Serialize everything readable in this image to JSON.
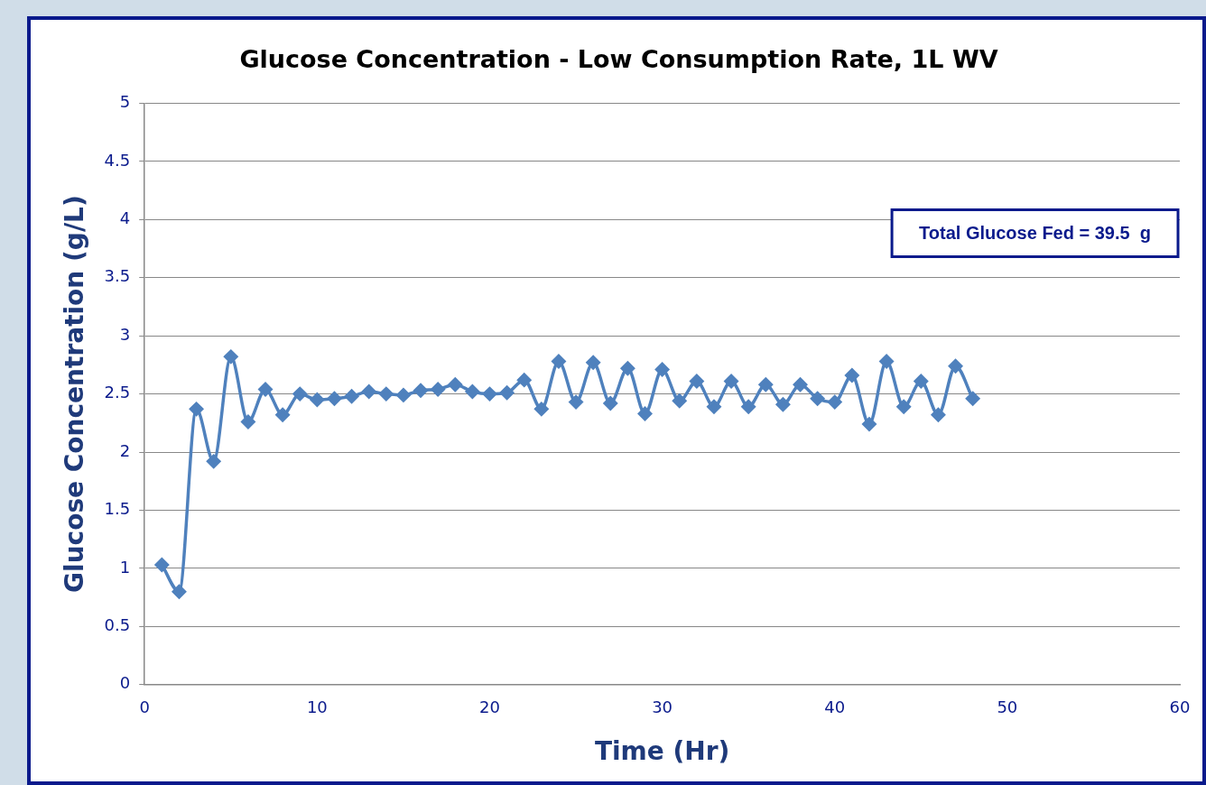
{
  "chart_data": {
    "type": "line",
    "title": "Glucose Concentration - Low Consumption Rate, 1L WV",
    "xlabel": "Time (Hr)",
    "ylabel": "Glucose Concentration (g/L)",
    "annotations": [
      "Total Glucose Fed = 39.5  g"
    ],
    "x": [
      1,
      2,
      3,
      4,
      5,
      6,
      7,
      8,
      9,
      10,
      11,
      12,
      13,
      14,
      15,
      16,
      17,
      18,
      19,
      20,
      21,
      22,
      23,
      24,
      25,
      26,
      27,
      28,
      29,
      30,
      31,
      32,
      33,
      34,
      35,
      36,
      37,
      38,
      39,
      40,
      41,
      42,
      43,
      44,
      45,
      46,
      47,
      48
    ],
    "series": [
      {
        "color": "#4f81bd",
        "values": [
          1.03,
          0.8,
          2.37,
          1.92,
          2.82,
          2.26,
          2.54,
          2.32,
          2.5,
          2.45,
          2.46,
          2.48,
          2.52,
          2.5,
          2.49,
          2.53,
          2.54,
          2.58,
          2.52,
          2.5,
          2.51,
          2.62,
          2.37,
          2.78,
          2.43,
          2.77,
          2.42,
          2.72,
          2.33,
          2.71,
          2.44,
          2.61,
          2.39,
          2.61,
          2.39,
          2.58,
          2.41,
          2.58,
          2.46,
          2.43,
          2.66,
          2.24,
          2.78,
          2.39,
          2.61,
          2.32,
          2.74,
          2.46
        ]
      }
    ],
    "xlim": [
      0,
      60
    ],
    "xticks": [
      0,
      10,
      20,
      30,
      40,
      50,
      60
    ],
    "ylim": [
      0,
      5
    ],
    "yticks": [
      0,
      0.5,
      1,
      1.5,
      2,
      2.5,
      3,
      3.5,
      4,
      4.5,
      5
    ],
    "grid": "y",
    "legend": false,
    "marker": "diamond",
    "line_style": "solid"
  }
}
